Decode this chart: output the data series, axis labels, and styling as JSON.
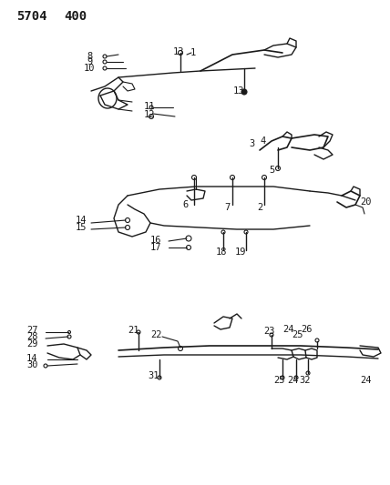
{
  "title": "5704  400",
  "bg_color": "#ffffff",
  "line_color": "#1a1a1a",
  "text_color": "#1a1a1a",
  "title_fontsize": 10,
  "label_fontsize": 7.5,
  "fig_width": 4.28,
  "fig_height": 5.33,
  "dpi": 100
}
